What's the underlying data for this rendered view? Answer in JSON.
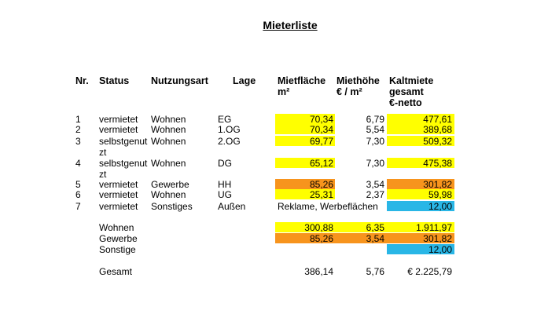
{
  "title": "Mieterliste",
  "header": [
    {
      "lines": [
        "Nr."
      ]
    },
    {
      "lines": [
        "Status"
      ]
    },
    {
      "lines": [
        "Nutzungsart"
      ]
    },
    {
      "lines": [
        "Lage"
      ]
    },
    {
      "lines": [
        "Mietfläche",
        "m²"
      ]
    },
    {
      "lines": [
        "Miethöhe",
        " € / m²"
      ]
    },
    {
      "lines": [
        "Kaltmiete",
        "gesamt",
        "€-netto"
      ]
    }
  ],
  "rows": [
    {
      "nr": "1",
      "status": "vermietet",
      "use": "Wohnen",
      "floor": "EG",
      "area": "70,34",
      "rate": "6,79",
      "total": "477,61",
      "area_fill": "#ffff00",
      "total_fill": "#ffff00"
    },
    {
      "nr": "2",
      "status": "vermietet",
      "use": "Wohnen",
      "floor": "1.OG",
      "area": "70,34",
      "rate": "5,54",
      "total": "389,68",
      "area_fill": "#ffff00",
      "total_fill": "#ffff00"
    },
    {
      "nr": "3",
      "status": "selbstgenutzt",
      "use": "Wohnen",
      "floor": "2.OG",
      "area": "69,77",
      "rate": "7,30",
      "total": "509,32",
      "area_fill": "#ffff00",
      "total_fill": "#ffff00"
    },
    {
      "nr": "4",
      "status": "selbstgenutzt",
      "use": "Wohnen",
      "floor": "DG",
      "area": "65,12",
      "rate": "7,30",
      "total": "475,38",
      "area_fill": "#ffff00",
      "total_fill": "#ffff00"
    },
    {
      "nr": "5",
      "status": "vermietet",
      "use": "Gewerbe",
      "floor": "HH",
      "area": "85,26",
      "rate": "3,54",
      "total": "301,82",
      "area_fill": "#f7941d",
      "total_fill": "#f7941d"
    },
    {
      "nr": "6",
      "status": "vermietet",
      "use": "Wohnen",
      "floor": "UG",
      "area": "25,31",
      "rate": "2,37",
      "total": "59,98",
      "area_fill": "#ffff00",
      "total_fill": "#ffff00"
    },
    {
      "nr": "7",
      "status": "vermietet",
      "use": "Sonstiges",
      "floor": "Außen",
      "note": "Reklame, Werbeflächen",
      "total": "12,00",
      "total_fill": "#29b6e6"
    }
  ],
  "summary": [
    {
      "label": "Wohnen",
      "area": "300,88",
      "rate": "6,35",
      "total": "1.911,97",
      "fill": "#ffff00"
    },
    {
      "label": "Gewerbe",
      "area": "85,26",
      "rate": "3,54",
      "total": "301,82",
      "fill": "#f7941d"
    },
    {
      "label": "Sonstige",
      "total": "12,00",
      "total_fill": "#29b6e6"
    }
  ],
  "grand_total": {
    "label": "Gesamt",
    "area": "386,14",
    "rate": "5,76",
    "total": "€ 2.225,79"
  }
}
